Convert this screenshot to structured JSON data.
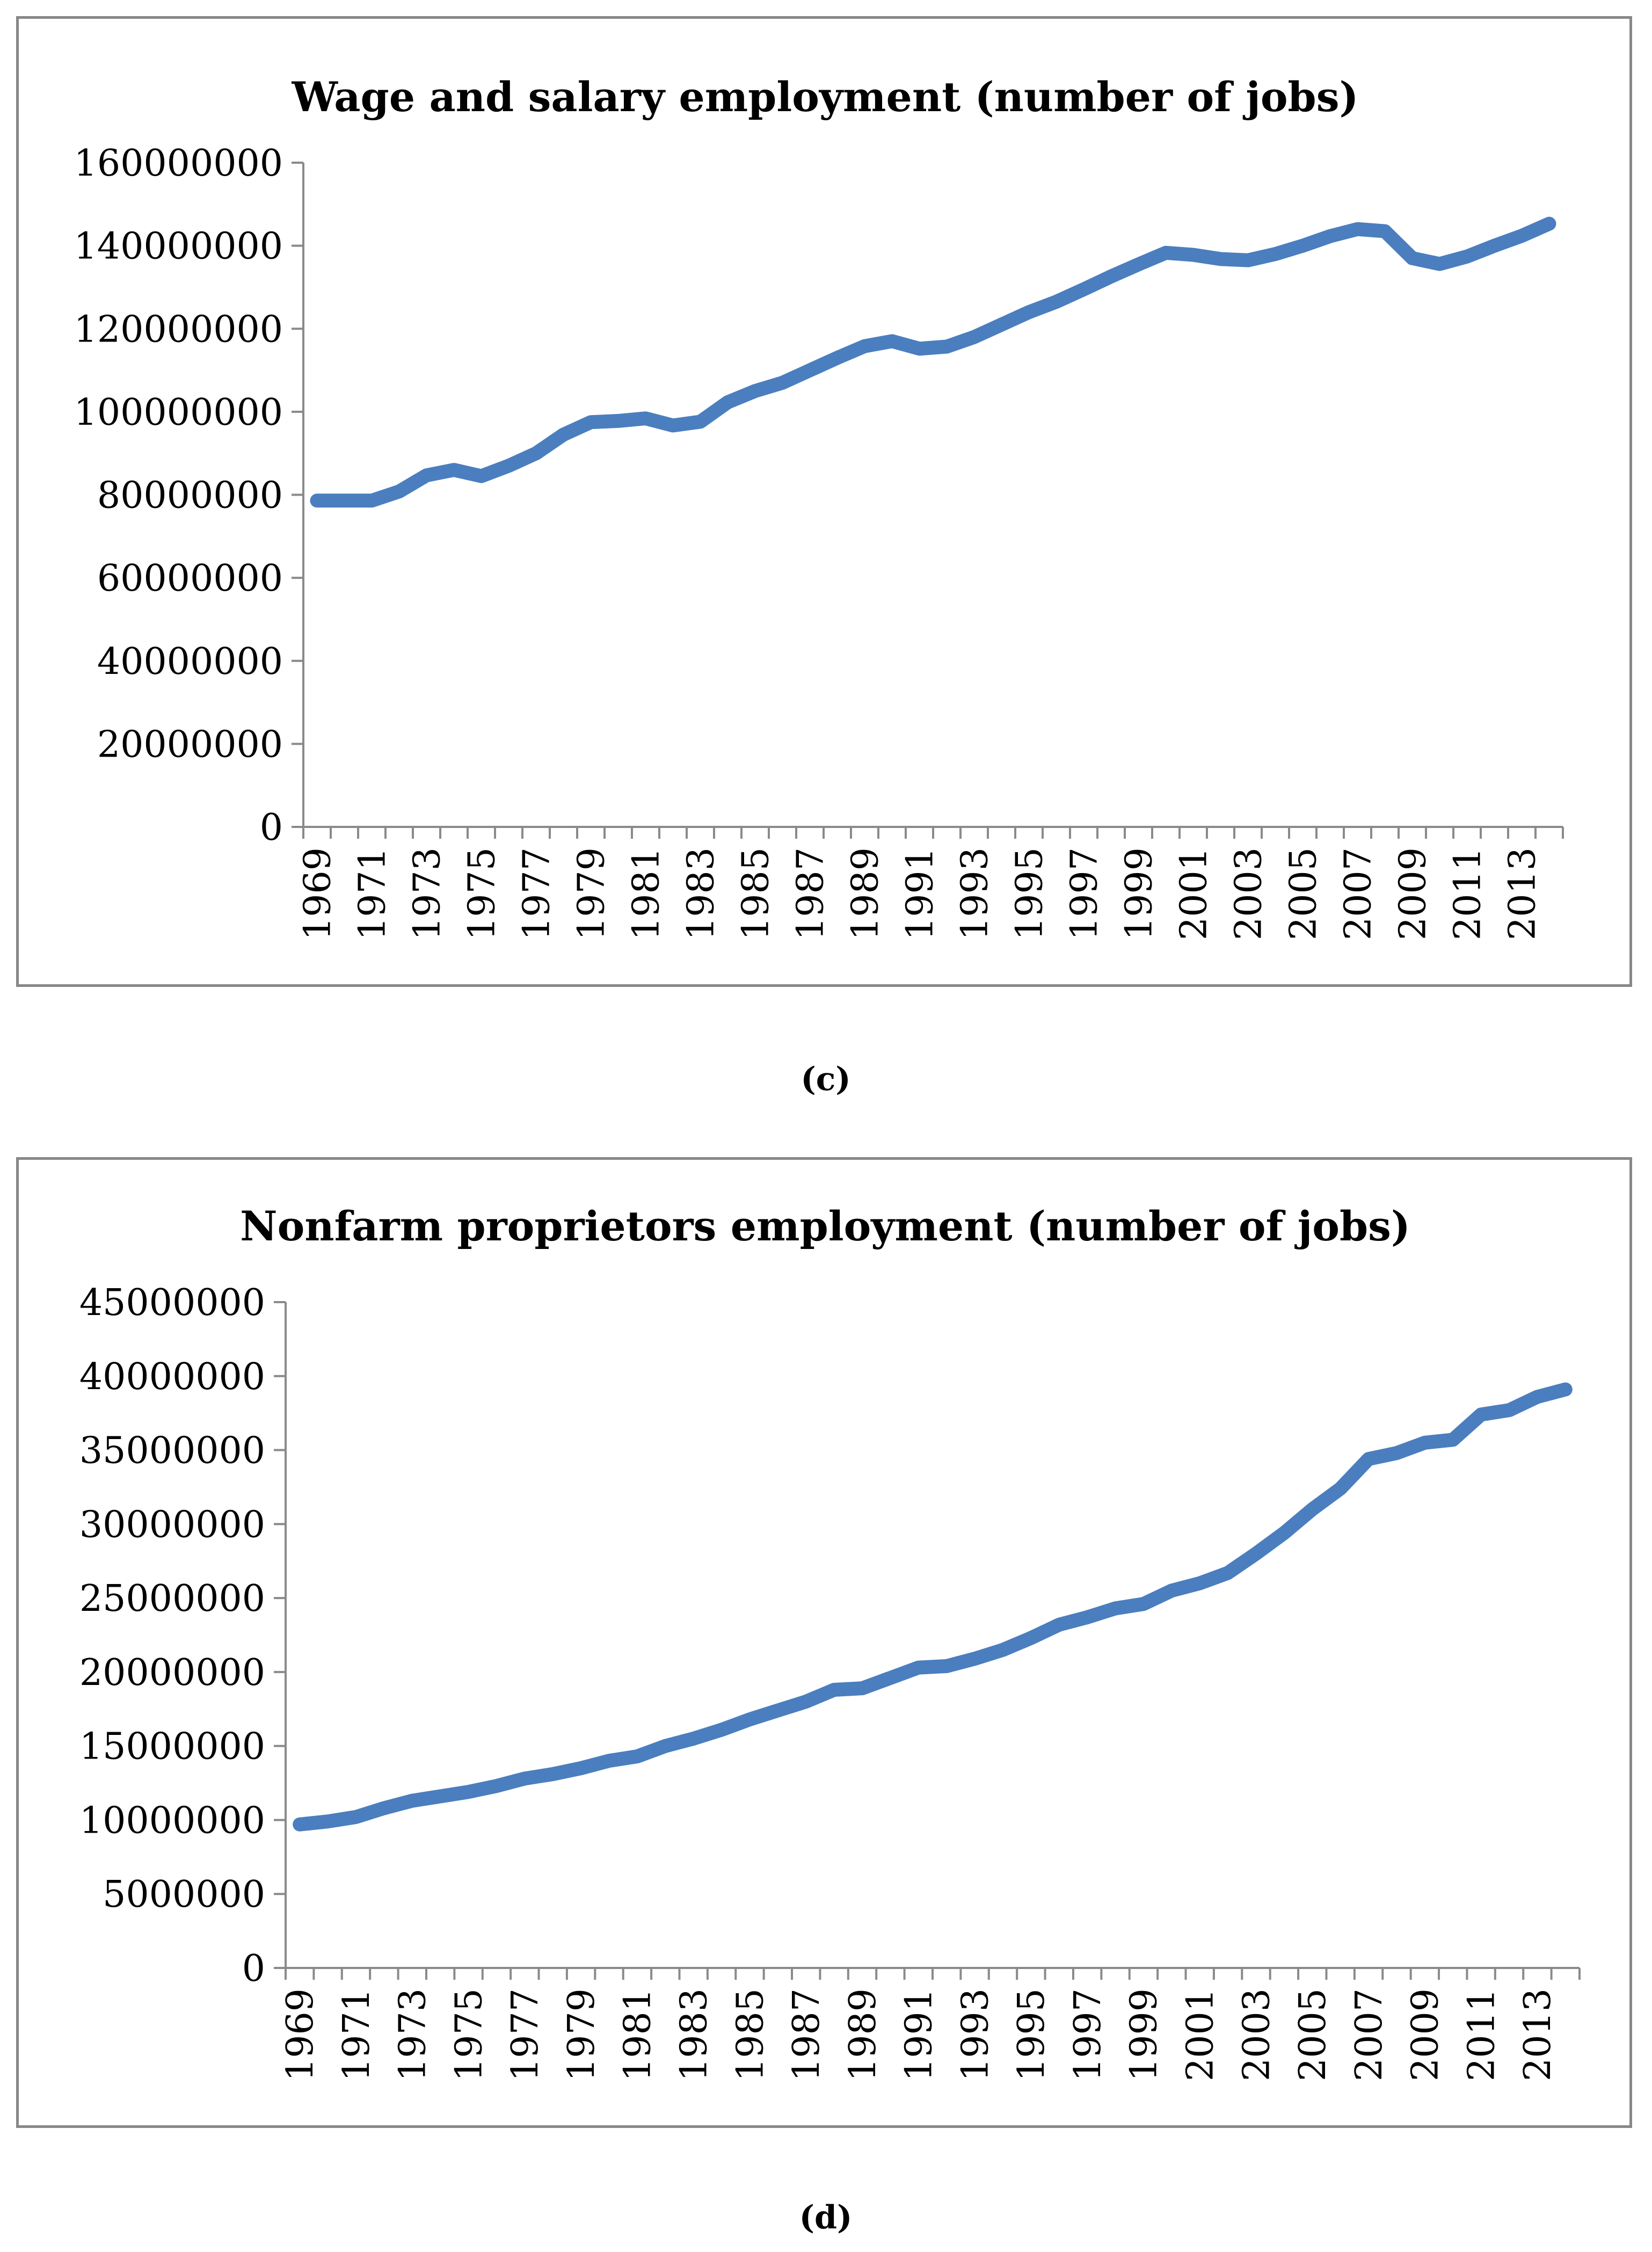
{
  "captions": {
    "c": "(c)",
    "d": "(d)"
  },
  "chart_data": [
    {
      "type": "line",
      "title": "Wage and salary employment (number of jobs)",
      "xlabel": "",
      "ylabel": "",
      "ylim": [
        0,
        160000000
      ],
      "yticks": [
        "0",
        "20000000",
        "40000000",
        "60000000",
        "80000000",
        "100000000",
        "120000000",
        "140000000",
        "160000000"
      ],
      "xtick_labels": [
        "1969",
        "1971",
        "1973",
        "1975",
        "1977",
        "1979",
        "1981",
        "1983",
        "1985",
        "1987",
        "1989",
        "1991",
        "1993",
        "1995",
        "1997",
        "1999",
        "2001",
        "2003",
        "2005",
        "2007",
        "2009",
        "2011",
        "2013"
      ],
      "grid": false,
      "color": "#4a7ebf",
      "x": [
        1969,
        1970,
        1971,
        1972,
        1973,
        1974,
        1975,
        1976,
        1977,
        1978,
        1979,
        1980,
        1981,
        1982,
        1983,
        1984,
        1985,
        1986,
        1987,
        1988,
        1989,
        1990,
        1991,
        1992,
        1993,
        1994,
        1995,
        1996,
        1997,
        1998,
        1999,
        2000,
        2001,
        2002,
        2003,
        2004,
        2005,
        2006,
        2007,
        2008,
        2009,
        2010,
        2011,
        2012,
        2013,
        2014
      ],
      "series": [
        {
          "name": "Wage and salary employment",
          "values": [
            78600000,
            78600000,
            78600000,
            80800000,
            84700000,
            86000000,
            84500000,
            87000000,
            90000000,
            94500000,
            97500000,
            97800000,
            98400000,
            96700000,
            97600000,
            102300000,
            105000000,
            107000000,
            110000000,
            113000000,
            115800000,
            117000000,
            115200000,
            115700000,
            118000000,
            121000000,
            124000000,
            126500000,
            129500000,
            132600000,
            135500000,
            138300000,
            137800000,
            136800000,
            136500000,
            138000000,
            140000000,
            142300000,
            144000000,
            143500000,
            137000000,
            135600000,
            137400000,
            140000000,
            142400000,
            145300000
          ]
        }
      ]
    },
    {
      "type": "line",
      "title": "Nonfarm proprietors employment (number of jobs)",
      "xlabel": "",
      "ylabel": "",
      "ylim": [
        0,
        45000000
      ],
      "yticks": [
        "0",
        "5000000",
        "10000000",
        "15000000",
        "20000000",
        "25000000",
        "30000000",
        "35000000",
        "40000000",
        "45000000"
      ],
      "xtick_labels": [
        "1969",
        "1971",
        "1973",
        "1975",
        "1977",
        "1979",
        "1981",
        "1983",
        "1985",
        "1987",
        "1989",
        "1991",
        "1993",
        "1995",
        "1997",
        "1999",
        "2001",
        "2003",
        "2005",
        "2007",
        "2009",
        "2011",
        "2013"
      ],
      "grid": false,
      "color": "#4a7ebf",
      "x": [
        1969,
        1970,
        1971,
        1972,
        1973,
        1974,
        1975,
        1976,
        1977,
        1978,
        1979,
        1980,
        1981,
        1982,
        1983,
        1984,
        1985,
        1986,
        1987,
        1988,
        1989,
        1990,
        1991,
        1992,
        1993,
        1994,
        1995,
        1996,
        1997,
        1998,
        1999,
        2000,
        2001,
        2002,
        2003,
        2004,
        2005,
        2006,
        2007,
        2008,
        2009,
        2010,
        2011,
        2012,
        2013,
        2014
      ],
      "series": [
        {
          "name": "Nonfarm proprietors employment",
          "values": [
            9700000,
            9900000,
            10200000,
            10800000,
            11300000,
            11600000,
            11900000,
            12300000,
            12800000,
            13100000,
            13500000,
            14000000,
            14300000,
            15000000,
            15500000,
            16100000,
            16800000,
            17400000,
            18000000,
            18800000,
            18900000,
            19600000,
            20300000,
            20400000,
            20900000,
            21500000,
            22300000,
            23200000,
            23700000,
            24300000,
            24600000,
            25500000,
            26000000,
            26700000,
            28000000,
            29400000,
            31000000,
            32400000,
            34400000,
            34800000,
            35500000,
            35700000,
            37400000,
            37700000,
            38600000,
            39100000
          ]
        }
      ]
    }
  ]
}
